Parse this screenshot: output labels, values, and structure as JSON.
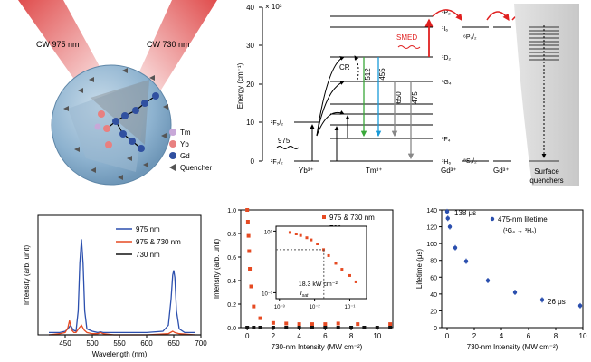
{
  "figure": {
    "illustration": {
      "laser_left": "CW 975 nm",
      "laser_right": "CW 730 nm",
      "legend": [
        "Tm",
        "Yb",
        "Gd",
        "Quencher"
      ],
      "colors": {
        "tm": "#c8a8d8",
        "yb": "#e88080",
        "gd": "#3050a0",
        "quencher": "#555555",
        "laser": "#d82020",
        "sphere": "#7fa6c4"
      }
    },
    "energy_diagram": {
      "ylabel": "Energy (cm⁻¹)",
      "exponent": "× 10³",
      "yticks": [
        "0",
        "10",
        "20",
        "30",
        "40"
      ],
      "yb_levels": [
        "²F₅/₂",
        "²F₇/₂"
      ],
      "yb_label": "Yb³⁺",
      "tm_label": "Tm³⁺",
      "tm_levels": [
        "³P₂",
        "¹I₆",
        "¹D₂",
        "¹G₄",
        "³F₄",
        "³H₆"
      ],
      "gd_levels": [
        "⁶P₇/₂",
        "⁸S₇/₂"
      ],
      "gd_label": "Gd³⁺",
      "quench_label": [
        "Surface",
        "quenchers"
      ],
      "transitions": [
        "512",
        "455",
        "650",
        "475"
      ],
      "annotations": {
        "cr": "CR",
        "smed": "SMED",
        "exc": "975"
      },
      "colors": {
        "green": "#3aa83a",
        "blue": "#1a9ad8",
        "gray": "#888888",
        "red": "#e02020"
      }
    },
    "chart_data": [
      {
        "type": "line",
        "xlabel": "Wavelength (nm)",
        "ylabel": "Intensity (arb. unit)",
        "xlim": [
          400,
          700
        ],
        "ylim": [
          0,
          1
        ],
        "xticks": [
          "450",
          "500",
          "550",
          "600",
          "650",
          "700"
        ],
        "series": [
          {
            "name": "975 nm",
            "color": "#2b4fae",
            "x": [
              420,
              440,
              450,
              455,
              460,
              465,
              470,
              474,
              477,
              480,
              483,
              486,
              490,
              500,
              510,
              515,
              520,
              540,
              600,
              630,
              640,
              645,
              648,
              650,
              652,
              655,
              660,
              670,
              690
            ],
            "y": [
              0.02,
              0.02,
              0.03,
              0.05,
              0.08,
              0.04,
              0.03,
              0.2,
              0.6,
              0.8,
              0.6,
              0.2,
              0.05,
              0.03,
              0.02,
              0.025,
              0.02,
              0.02,
              0.02,
              0.03,
              0.08,
              0.3,
              0.5,
              0.54,
              0.48,
              0.2,
              0.05,
              0.02,
              0.02
            ]
          },
          {
            "name": "975 & 730 nm",
            "color": "#e64a22",
            "x": [
              420,
              440,
              450,
              455,
              458,
              460,
              462,
              466,
              470,
              476,
              480,
              485,
              490,
              500,
              510,
              515,
              520,
              540,
              600,
              640,
              648,
              652,
              660,
              690
            ],
            "y": [
              0.0,
              0.01,
              0.02,
              0.06,
              0.12,
              0.08,
              0.04,
              0.02,
              0.02,
              0.06,
              0.08,
              0.04,
              0.02,
              0.01,
              0.01,
              0.02,
              0.01,
              0.0,
              0.0,
              0.01,
              0.03,
              0.02,
              0.01,
              0.0
            ]
          },
          {
            "name": "730 nm",
            "color": "#111111",
            "x": [
              420,
              700
            ],
            "y": [
              0.0,
              0.0
            ]
          }
        ]
      },
      {
        "type": "scatter",
        "xlabel": "730-nm Intensity (MW cm⁻²)",
        "ylabel": "Intensity (arb. unit)",
        "xlim": [
          -0.5,
          11.2
        ],
        "ylim": [
          0,
          1
        ],
        "xticks": [
          "0",
          "2",
          "4",
          "6",
          "8",
          "10"
        ],
        "yticks": [
          "0.0",
          "0.2",
          "0.4",
          "0.6",
          "0.8",
          "1.0"
        ],
        "series": [
          {
            "name": "975 & 730 nm",
            "color": "#e64a22",
            "x": [
              0,
              0.05,
              0.1,
              0.15,
              0.2,
              0.3,
              0.5,
              1,
              2,
              3,
              4,
              5,
              6,
              7,
              8.5,
              11
            ],
            "y": [
              1.0,
              0.9,
              0.78,
              0.65,
              0.5,
              0.35,
              0.18,
              0.08,
              0.04,
              0.035,
              0.03,
              0.03,
              0.03,
              0.035,
              0.03,
              0.03
            ]
          },
          {
            "name": "730 nm",
            "color": "#111111",
            "x": [
              0,
              0.5,
              1,
              2,
              3,
              4,
              5,
              6,
              7,
              8,
              9,
              10,
              11
            ],
            "y": [
              0,
              0,
              0,
              0,
              0,
              0,
              0,
              0,
              0,
              0,
              0,
              0,
              0
            ]
          }
        ],
        "inset": {
          "annotation": [
            "18.3 kW cm⁻²",
            "I_sat"
          ],
          "xticks": [
            "10⁻³",
            "10⁻²",
            "10⁻¹"
          ],
          "yticks": [
            "10⁰",
            "10⁻¹"
          ],
          "x": [
            0.002,
            0.003,
            0.004,
            0.006,
            0.008,
            0.012,
            0.018,
            0.025,
            0.04,
            0.06,
            0.1,
            0.15
          ],
          "y": [
            0.95,
            0.9,
            0.85,
            0.78,
            0.72,
            0.62,
            0.5,
            0.4,
            0.3,
            0.24,
            0.19,
            0.15
          ]
        }
      },
      {
        "type": "scatter",
        "xlabel": "730-nm Intensity (MW cm⁻²)",
        "ylabel": "Lifetime (μs)",
        "xlim": [
          -0.4,
          10
        ],
        "ylim": [
          0,
          140
        ],
        "xticks": [
          "0",
          "2",
          "4",
          "6",
          "8",
          "10"
        ],
        "yticks": [
          "0",
          "20",
          "40",
          "60",
          "80",
          "100",
          "120",
          "140"
        ],
        "series": [
          {
            "name": "475-nm lifetime",
            "color": "#2b4fae",
            "x": [
              0,
              0.05,
              0.2,
              0.6,
              1.4,
              3.0,
              5.0,
              7.0,
              9.8
            ],
            "y": [
              138,
              130,
              120,
              95,
              79,
              56,
              42,
              33,
              26
            ]
          }
        ],
        "legend_sub": "(¹G₄ → ³H₆)",
        "annotations": [
          "138 μs",
          "26 μs"
        ]
      }
    ]
  }
}
